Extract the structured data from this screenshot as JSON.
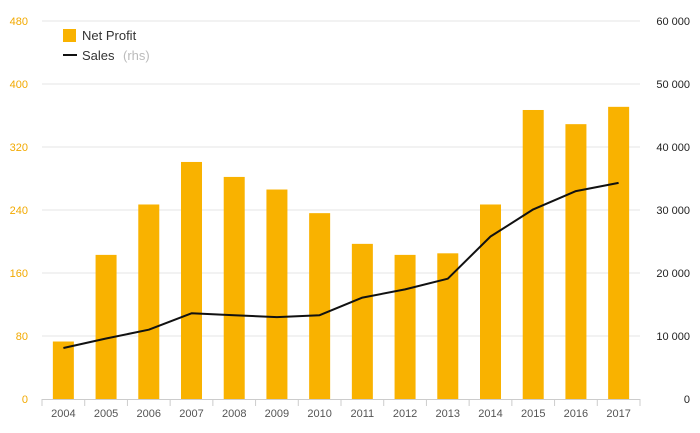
{
  "chart_data": {
    "type": "bar",
    "categories": [
      "2004",
      "2005",
      "2006",
      "2007",
      "2008",
      "2009",
      "2010",
      "2011",
      "2012",
      "2013",
      "2014",
      "2015",
      "2016",
      "2017"
    ],
    "series": [
      {
        "name": "Net Profit",
        "type": "bar",
        "axis": "left",
        "color": "#f9b200",
        "values": [
          73,
          183,
          247,
          301,
          282,
          266,
          236,
          197,
          183,
          185,
          247,
          367,
          349,
          371
        ]
      },
      {
        "name": "Sales",
        "type": "line",
        "axis": "right",
        "color": "#111111",
        "values": [
          8100,
          9600,
          11000,
          13600,
          13300,
          13000,
          13300,
          16100,
          17400,
          19100,
          25800,
          30100,
          33000,
          34300
        ]
      }
    ],
    "y_left": {
      "range": [
        0,
        480
      ],
      "ticks": [
        0,
        80,
        160,
        240,
        320,
        400,
        480
      ],
      "tick_color": "#f2a900"
    },
    "y_right": {
      "range": [
        0,
        60000
      ],
      "ticks": [
        "0",
        "10 000",
        "20 000",
        "30 000",
        "40 000",
        "50 000",
        "60 000"
      ]
    },
    "legend": {
      "position": "top-left",
      "entries": [
        {
          "label": "Net Profit",
          "note": ""
        },
        {
          "label": "Sales",
          "note": "(rhs)"
        }
      ]
    },
    "grid": true,
    "title": "",
    "xlabel": "",
    "ylabel": ""
  }
}
